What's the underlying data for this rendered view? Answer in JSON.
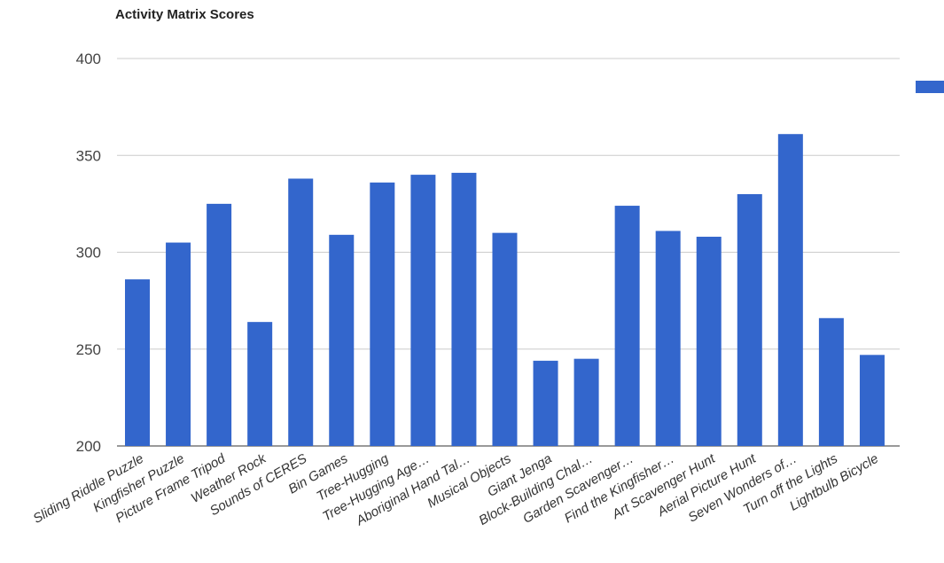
{
  "chart_data": {
    "type": "bar",
    "title": "Activity Matrix Scores",
    "xlabel": "",
    "ylabel": "",
    "ylim": [
      200,
      400
    ],
    "yticks": [
      200,
      250,
      300,
      350,
      400
    ],
    "grid": true,
    "legend": "right",
    "bar_color": "#3366cc",
    "categories": [
      "Sliding Riddle Puzzle",
      "Kingfisher Puzzle",
      "Picture Frame Tripod",
      "Weather Rock",
      "Sounds of CERES",
      "Bin Games",
      "Tree-Hugging",
      "Tree-Hugging Age…",
      "Aboriginal Hand Tal…",
      "Musical Objects",
      "Giant Jenga",
      "Block-Building Chal…",
      "Garden Scavenger…",
      "Find the Kingfisher…",
      "Art Scavenger Hunt",
      "Aerial Picture Hunt",
      "Seven Wonders of…",
      "Turn off the Lights",
      "Lightbulb Bicycle"
    ],
    "series": [
      {
        "values": [
          286,
          305,
          325,
          264,
          338,
          309,
          336,
          340,
          341,
          310,
          244,
          245,
          324,
          311,
          308,
          330,
          361,
          266,
          247
        ]
      }
    ]
  }
}
